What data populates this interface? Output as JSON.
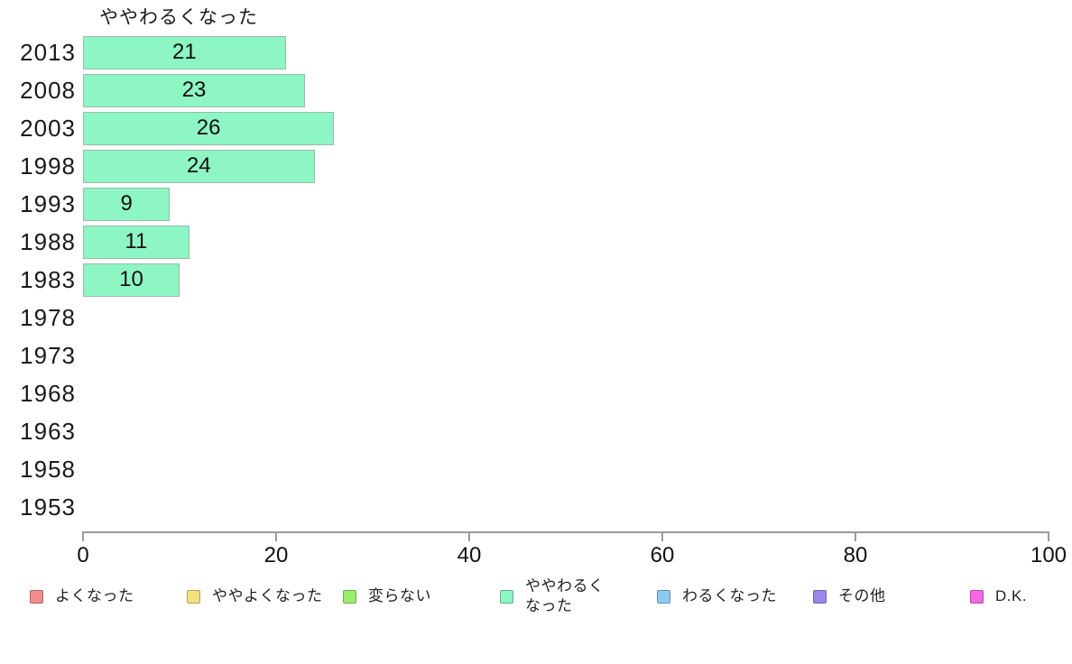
{
  "chart_data": {
    "type": "bar",
    "orientation": "horizontal",
    "title": "ややわるくなった",
    "categories": [
      "2013",
      "2008",
      "2003",
      "1998",
      "1993",
      "1988",
      "1983",
      "1978",
      "1973",
      "1968",
      "1963",
      "1958",
      "1953"
    ],
    "values": [
      21,
      23,
      26,
      24,
      9,
      11,
      10,
      null,
      null,
      null,
      null,
      null,
      null
    ],
    "xlabel": "",
    "ylabel": "",
    "xlim": [
      0,
      100
    ],
    "x_ticks": [
      0,
      20,
      40,
      60,
      80,
      100
    ],
    "grid": false,
    "bar_color": "#8ef5c4",
    "bar_border_color": "#97bda8",
    "axis_color": "#9a9a9a",
    "legend_position": "bottom",
    "legend": [
      {
        "label": "よくなった",
        "color": "#f28b8b"
      },
      {
        "label": "ややよくなった",
        "color": "#f5e07d"
      },
      {
        "label": "変らない",
        "color": "#9cee6e"
      },
      {
        "label": "ややわるく\nなった",
        "color": "#8ef5c4"
      },
      {
        "label": "わるくなった",
        "color": "#8cc9f4"
      },
      {
        "label": "その他",
        "color": "#9b87ea"
      },
      {
        "label": "D.K.",
        "color": "#f767e4"
      }
    ]
  }
}
